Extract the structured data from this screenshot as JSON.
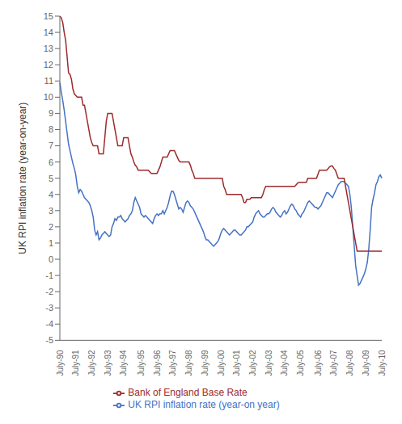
{
  "chart_data": {
    "type": "line",
    "y_label": "UK RPI inflation rate (year-on-year)",
    "ylim": [
      -5,
      15
    ],
    "yticks": [
      -5,
      -4,
      -3,
      -2,
      -1,
      0,
      1,
      2,
      3,
      4,
      5,
      6,
      7,
      8,
      9,
      10,
      11,
      12,
      13,
      14,
      15
    ],
    "grid": false,
    "categories": [
      "July-90",
      null,
      null,
      null,
      null,
      null,
      null,
      null,
      null,
      null,
      null,
      "July-91",
      null,
      null,
      null,
      null,
      null,
      null,
      null,
      null,
      null,
      null,
      "July-92",
      null,
      null,
      null,
      null,
      null,
      null,
      null,
      null,
      null,
      null,
      "July-93",
      null,
      null,
      null,
      null,
      null,
      null,
      null,
      null,
      null,
      null,
      "July-94",
      null,
      null,
      null,
      null,
      null,
      null,
      null,
      null,
      null,
      null,
      null,
      "July-95",
      null,
      null,
      null,
      null,
      null,
      null,
      null,
      null,
      null,
      null,
      "July-96",
      null,
      null,
      null,
      null,
      null,
      null,
      null,
      null,
      null,
      null,
      "July-97",
      null,
      null,
      null,
      null,
      null,
      null,
      null,
      null,
      null,
      null,
      "July-98",
      null,
      null,
      null,
      null,
      null,
      null,
      null,
      null,
      null,
      null,
      "July-99",
      null,
      null,
      null,
      null,
      null,
      null,
      null,
      null,
      null,
      null,
      "July-00",
      null,
      null,
      null,
      null,
      null,
      null,
      null,
      null,
      null,
      null,
      "July-01",
      null,
      null,
      null,
      null,
      null,
      null,
      null,
      null,
      null,
      null,
      "July-02",
      null,
      null,
      null,
      null,
      null,
      null,
      null,
      null,
      null,
      null,
      "July-03",
      null,
      null,
      null,
      null,
      null,
      null,
      null,
      null,
      null,
      null,
      "July-04",
      null,
      null,
      null,
      null,
      null,
      null,
      null,
      null,
      null,
      null,
      "July-05",
      null,
      null,
      null,
      null,
      null,
      null,
      null,
      null,
      null,
      null,
      null,
      "July-06",
      null,
      null,
      null,
      null,
      null,
      null,
      null,
      null,
      null,
      null,
      "July-07",
      null,
      null,
      null,
      null,
      null,
      null,
      null,
      null,
      null,
      null,
      "July-08",
      null,
      null,
      null,
      null,
      null,
      null,
      null,
      null,
      null,
      null,
      "July-09",
      null,
      null,
      null,
      null,
      null,
      null,
      null,
      null,
      null,
      null,
      "July-10"
    ],
    "series": [
      {
        "name": "UK RPI inflation rate (year-on year)",
        "color": "#4472C4",
        "values": [
          10.9,
          10.3,
          9.8,
          9.2,
          8.5,
          7.8,
          7.1,
          6.7,
          6.3,
          5.9,
          5.6,
          5.2,
          4.5,
          4.1,
          4.3,
          4.2,
          4.0,
          3.8,
          3.7,
          3.6,
          3.5,
          3.3,
          3.0,
          2.6,
          1.8,
          1.5,
          1.7,
          1.2,
          1.3,
          1.5,
          1.6,
          1.7,
          1.6,
          1.5,
          1.4,
          1.5,
          2.0,
          2.2,
          2.5,
          2.4,
          2.6,
          2.6,
          2.7,
          2.5,
          2.4,
          2.3,
          2.4,
          2.5,
          2.7,
          2.8,
          3.0,
          3.5,
          3.8,
          3.6,
          3.4,
          3.2,
          2.8,
          2.7,
          2.6,
          2.7,
          2.6,
          2.5,
          2.4,
          2.3,
          2.2,
          2.5,
          2.7,
          2.8,
          2.7,
          2.8,
          2.8,
          3.0,
          2.8,
          3.0,
          3.2,
          3.5,
          3.9,
          4.2,
          4.2,
          4.0,
          3.7,
          3.4,
          3.1,
          3.2,
          3.1,
          2.9,
          3.2,
          3.5,
          3.6,
          3.5,
          3.3,
          3.2,
          3.1,
          2.9,
          2.7,
          2.5,
          2.3,
          2.1,
          1.9,
          1.7,
          1.4,
          1.2,
          1.2,
          1.1,
          1.0,
          0.9,
          0.8,
          0.9,
          1.0,
          1.1,
          1.3,
          1.6,
          1.8,
          1.9,
          1.8,
          1.7,
          1.6,
          1.5,
          1.6,
          1.7,
          1.8,
          1.8,
          1.7,
          1.6,
          1.5,
          1.5,
          1.6,
          1.7,
          1.8,
          2.0,
          2.0,
          2.1,
          2.2,
          2.3,
          2.6,
          2.8,
          2.9,
          3.0,
          2.8,
          2.7,
          2.6,
          2.6,
          2.7,
          2.8,
          2.8,
          2.9,
          3.1,
          3.2,
          3.1,
          2.9,
          2.8,
          2.7,
          2.6,
          2.7,
          2.9,
          3.0,
          2.8,
          2.9,
          3.1,
          3.3,
          3.4,
          3.3,
          3.1,
          3.0,
          2.8,
          2.7,
          2.6,
          2.8,
          2.9,
          3.1,
          3.3,
          3.5,
          3.6,
          3.5,
          3.4,
          3.3,
          3.2,
          3.2,
          3.1,
          3.2,
          3.3,
          3.5,
          3.7,
          3.9,
          4.1,
          4.1,
          4.0,
          3.9,
          3.8,
          4.0,
          4.2,
          4.4,
          4.6,
          4.7,
          4.8,
          4.8,
          4.8,
          4.7,
          4.6,
          4.5,
          4.0,
          3.2,
          2.0,
          0.8,
          -0.4,
          -1.0,
          -1.6,
          -1.5,
          -1.3,
          -1.1,
          -0.9,
          -0.6,
          -0.2,
          0.6,
          1.8,
          3.2,
          3.7,
          4.1,
          4.6,
          4.8,
          5.1,
          5.2,
          5.0
        ]
      },
      {
        "name": "Bank of England Base Rate",
        "color": "#9E2A2B",
        "values": [
          15.0,
          14.9,
          14.6,
          14.0,
          13.5,
          12.5,
          11.5,
          11.4,
          11.1,
          10.5,
          10.2,
          10.1,
          10.0,
          10.0,
          10.0,
          10.0,
          9.5,
          9.5,
          9.0,
          8.5,
          8.0,
          7.5,
          7.2,
          7.0,
          7.0,
          7.0,
          7.0,
          6.5,
          6.5,
          6.5,
          6.5,
          7.5,
          8.5,
          9.0,
          9.0,
          9.0,
          9.0,
          8.5,
          8.0,
          7.5,
          7.0,
          7.0,
          7.0,
          7.0,
          7.5,
          7.5,
          7.5,
          7.5,
          7.0,
          6.5,
          6.3,
          6.0,
          5.8,
          5.7,
          5.5,
          5.5,
          5.5,
          5.5,
          5.5,
          5.5,
          5.5,
          5.5,
          5.4,
          5.3,
          5.3,
          5.3,
          5.3,
          5.3,
          5.5,
          5.7,
          6.0,
          6.3,
          6.3,
          6.3,
          6.3,
          6.5,
          6.7,
          6.7,
          6.7,
          6.7,
          6.5,
          6.3,
          6.1,
          6.0,
          6.0,
          6.0,
          6.0,
          6.0,
          6.0,
          6.0,
          5.8,
          5.5,
          5.3,
          5.0,
          5.0,
          5.0,
          5.0,
          5.0,
          5.0,
          5.0,
          5.0,
          5.0,
          5.0,
          5.0,
          5.0,
          5.0,
          5.0,
          5.0,
          5.0,
          5.0,
          5.0,
          5.0,
          5.0,
          4.5,
          4.3,
          4.0,
          4.0,
          4.0,
          4.0,
          4.0,
          4.0,
          4.0,
          4.0,
          4.0,
          4.0,
          4.0,
          3.8,
          3.5,
          3.5,
          3.7,
          3.7,
          3.7,
          3.8,
          3.8,
          3.8,
          3.8,
          3.8,
          3.8,
          3.8,
          3.8,
          4.0,
          4.3,
          4.5,
          4.5,
          4.5,
          4.5,
          4.5,
          4.5,
          4.5,
          4.5,
          4.5,
          4.5,
          4.5,
          4.5,
          4.5,
          4.5,
          4.5,
          4.5,
          4.5,
          4.5,
          4.5,
          4.5,
          4.5,
          4.6,
          4.7,
          4.75,
          4.75,
          4.75,
          4.75,
          4.75,
          4.75,
          5.0,
          5.0,
          5.0,
          5.0,
          5.0,
          5.0,
          5.0,
          5.25,
          5.5,
          5.5,
          5.5,
          5.5,
          5.5,
          5.5,
          5.6,
          5.7,
          5.75,
          5.75,
          5.6,
          5.5,
          5.25,
          5.0,
          5.0,
          5.0,
          5.0,
          5.0,
          4.5,
          4.0,
          3.5,
          3.0,
          2.5,
          2.0,
          1.5,
          1.0,
          0.5,
          0.5,
          0.5,
          0.5,
          0.5,
          0.5,
          0.5,
          0.5,
          0.5,
          0.5,
          0.5,
          0.5,
          0.5,
          0.5,
          0.5,
          0.5,
          0.5,
          0.5
        ]
      }
    ]
  }
}
